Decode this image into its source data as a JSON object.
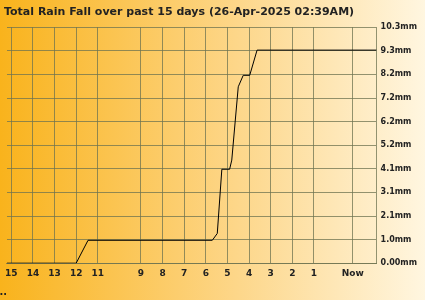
{
  "chart_data": {
    "type": "line",
    "title": "Total Rain Fall over past 15 days (26-Apr-2025 02:39AM)",
    "x_label": "Days ago...",
    "x": [
      15.2,
      12.0,
      11.45,
      5.7,
      5.47,
      5.26,
      4.9,
      4.8,
      4.5,
      4.27,
      3.97,
      3.63,
      -1.9
    ],
    "values": [
      0,
      0,
      1.0,
      1.0,
      1.3,
      4.1,
      4.1,
      4.5,
      7.7,
      8.2,
      8.2,
      9.3,
      9.3
    ],
    "color": "#000000",
    "xlim": [
      15.2,
      -1.9
    ],
    "xticks": [
      15,
      14,
      13,
      12,
      11,
      9,
      8,
      7,
      6,
      5,
      4,
      3,
      2,
      1,
      {
        "value": -0.8,
        "label": "Now"
      }
    ],
    "ylim": [
      0,
      10.3
    ],
    "yticks": [
      {
        "value": 0,
        "label": "0.00mm"
      },
      {
        "value": 1.03,
        "label": "1.0mm"
      },
      {
        "value": 2.06,
        "label": "2.1mm"
      },
      {
        "value": 3.09,
        "label": "3.1mm"
      },
      {
        "value": 4.12,
        "label": "4.1mm"
      },
      {
        "value": 5.15,
        "label": "5.2mm"
      },
      {
        "value": 6.18,
        "label": "6.2mm"
      },
      {
        "value": 7.21,
        "label": "7.2mm"
      },
      {
        "value": 8.24,
        "label": "8.2mm"
      },
      {
        "value": 9.27,
        "label": "9.3mm"
      },
      {
        "value": 10.3,
        "label": "10.3mm"
      }
    ],
    "grid": true
  }
}
